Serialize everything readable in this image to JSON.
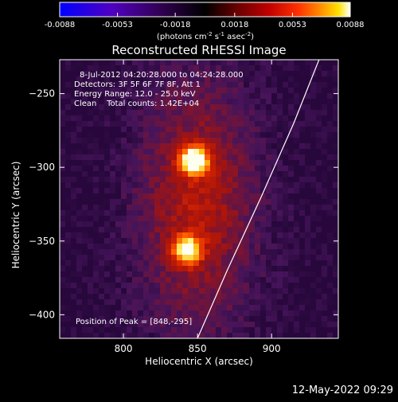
{
  "chart_data": {
    "type": "heatmap",
    "title": "Reconstructed RHESSI Image",
    "xlabel": "Heliocentric X (arcsec)",
    "ylabel": "Heliocentric Y (arcsec)",
    "xlim": [
      757,
      945
    ],
    "ylim": [
      -416,
      -227
    ],
    "x_ticks": [
      800,
      850,
      900
    ],
    "y_ticks": [
      -250,
      -300,
      -350,
      -400
    ],
    "colorbar": {
      "range": [
        -0.0088,
        0.0088
      ],
      "tick_labels": [
        "-0.0088",
        "-0.0053",
        "-0.0018",
        "0.0018",
        "0.0053",
        "0.0088"
      ],
      "label_units": "(photons cm",
      "label_exp1": "-2",
      "label_mid": " s",
      "label_exp2": "-1",
      "label_end": " asec",
      "label_exp3": "-2",
      "label_close": ")",
      "colors": [
        "#0000ff",
        "#5000c0",
        "#300050",
        "#000000",
        "#600000",
        "#c00000",
        "#ff2000",
        "#ff8000",
        "#ffe000",
        "#ffffff"
      ]
    },
    "sources": [
      {
        "x": 848,
        "y": -295,
        "peak": 1.0
      },
      {
        "x": 843,
        "y": -356,
        "peak": 0.85
      }
    ],
    "annotations": {
      "time_range": "8-Jul-2012 04:20:28.000 to 04:24:28.000",
      "detectors": "Detectors: 3F 5F 6F 7F 8F, Att 1",
      "energy": "Energy Range: 12.0 - 25.0 keV",
      "clean": "Clean    Total counts: 1.42E+04",
      "peak_position": "Position of Peak = [848,-295]"
    },
    "limb_curve": [
      [
        850,
        -416
      ],
      [
        870,
        -370
      ],
      [
        893,
        -320
      ],
      [
        915,
        -270
      ],
      [
        932,
        -227
      ]
    ]
  },
  "footer": {
    "timestamp": "12-May-2022 09:29"
  }
}
